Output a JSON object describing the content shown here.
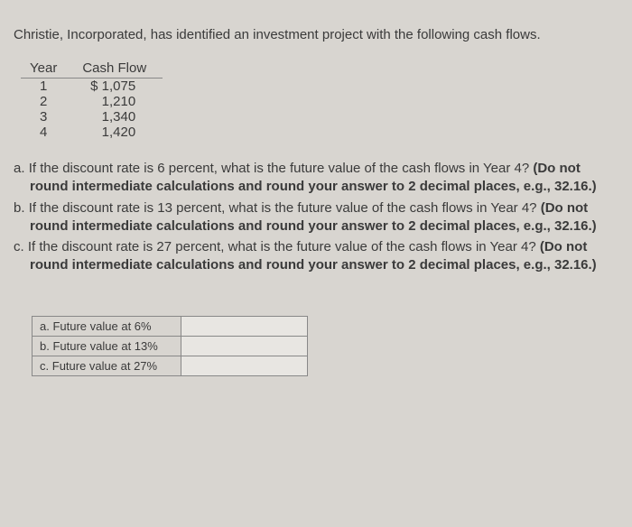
{
  "intro": "Christie, Incorporated, has identified an investment project with the following cash flows.",
  "cashflow_table": {
    "headers": [
      "Year",
      "Cash Flow"
    ],
    "rows": [
      [
        "1",
        "$ 1,075"
      ],
      [
        "2",
        "1,210"
      ],
      [
        "3",
        "1,340"
      ],
      [
        "4",
        "1,420"
      ]
    ]
  },
  "questions": {
    "a": {
      "letter": "a.",
      "text": "If the discount rate is 6 percent, what is the future value of the cash flows in Year 4?",
      "bold": "(Do not round intermediate calculations and round your answer to 2 decimal places, e.g., 32.16.)"
    },
    "b": {
      "letter": "b.",
      "text": "If the discount rate is 13 percent, what is the future value of the cash flows in Year 4?",
      "bold": "(Do not round intermediate calculations and round your answer to 2 decimal places, e.g., 32.16.)"
    },
    "c": {
      "letter": "c.",
      "text": "If the discount rate is 27 percent, what is the future value of the cash flows in Year 4?",
      "bold": "(Do not round intermediate calculations and round your answer to 2 decimal places, e.g., 32.16.)"
    }
  },
  "answer_table": {
    "rows": [
      {
        "letter": "a.",
        "label": "Future value at 6%"
      },
      {
        "letter": "b.",
        "label": "Future value at 13%"
      },
      {
        "letter": "c.",
        "label": "Future value at 27%"
      }
    ]
  }
}
